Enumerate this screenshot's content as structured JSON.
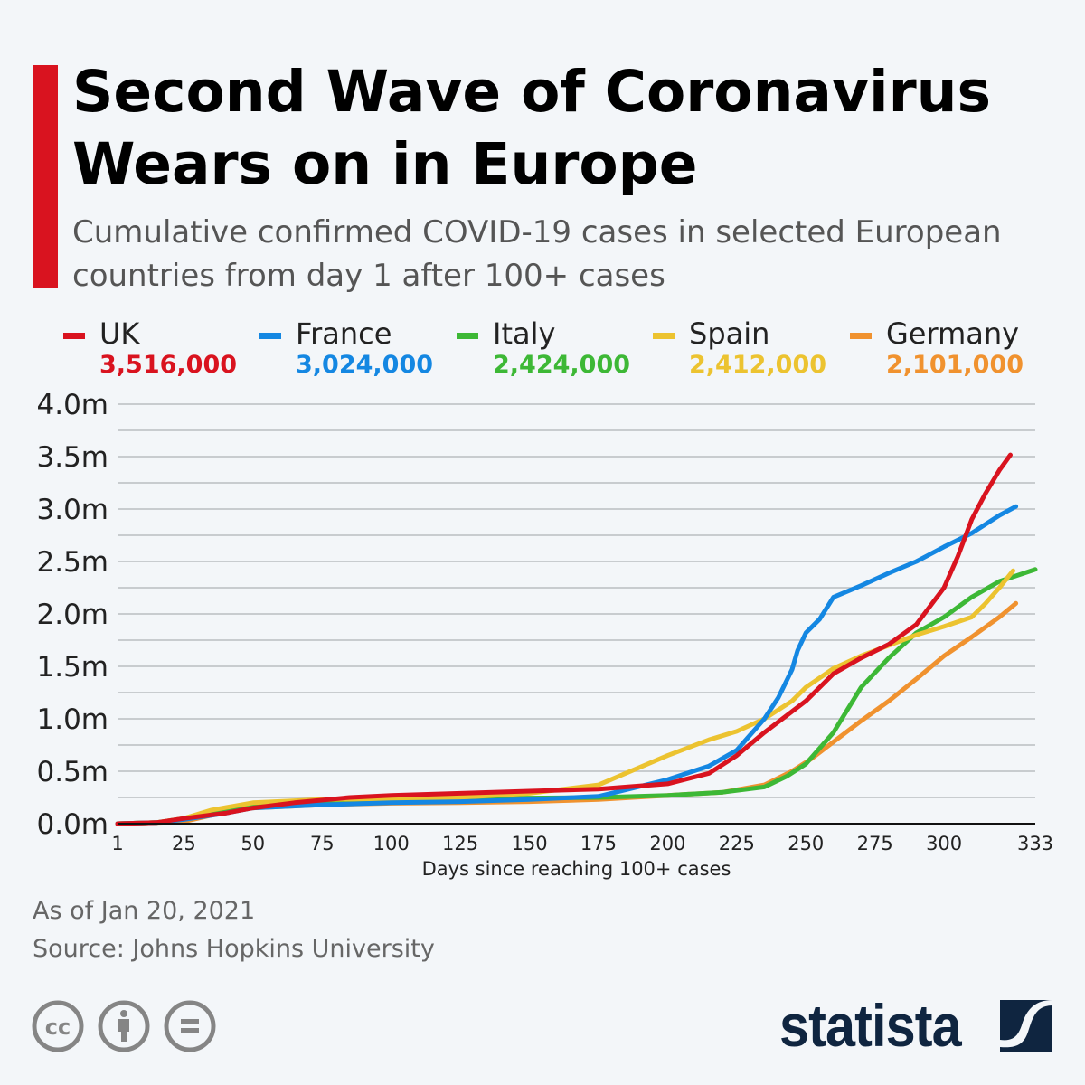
{
  "title": "Second Wave of Coronavirus Wears on in Europe",
  "subtitle": "Cumulative confirmed COVID-19 cases in selected European countries from day 1 after 100+ cases",
  "footer": {
    "date": "As of Jan 20, 2021",
    "source": "Source: Johns Hopkins University"
  },
  "brand": {
    "name": "statista",
    "license_icons": [
      "cc-icon",
      "attribution-icon",
      "no-derivatives-icon"
    ]
  },
  "legend": [
    {
      "name": "UK",
      "value": "3,516,000",
      "color": "#d9131f"
    },
    {
      "name": "France",
      "value": "3,024,000",
      "color": "#1487e2"
    },
    {
      "name": "Italy",
      "value": "2,424,000",
      "color": "#3db836"
    },
    {
      "name": "Spain",
      "value": "2,412,000",
      "color": "#ecc330"
    },
    {
      "name": "Germany",
      "value": "2,101,000",
      "color": "#f0922f"
    }
  ],
  "chart_data": {
    "type": "line",
    "xlabel": "Days since reaching 100+ cases",
    "ylabel": "",
    "xlim": [
      1,
      333
    ],
    "ylim": [
      0,
      4.0
    ],
    "x_ticks": [
      1,
      25,
      50,
      75,
      100,
      125,
      150,
      175,
      200,
      225,
      250,
      275,
      300,
      333
    ],
    "y_ticks": [
      {
        "v": 0,
        "label": "0.0m"
      },
      {
        "v": 0.5,
        "label": "0.5m"
      },
      {
        "v": 1.0,
        "label": "1.0m"
      },
      {
        "v": 1.5,
        "label": "1.5m"
      },
      {
        "v": 2.0,
        "label": "2.0m"
      },
      {
        "v": 2.5,
        "label": "2.5m"
      },
      {
        "v": 3.0,
        "label": "3.0m"
      },
      {
        "v": 3.5,
        "label": "3.5m"
      },
      {
        "v": 4.0,
        "label": "4.0m"
      }
    ],
    "grid": true,
    "units": "million cases",
    "series": [
      {
        "name": "UK",
        "color": "#d9131f",
        "x": [
          1,
          15,
          25,
          40,
          50,
          65,
          85,
          100,
          125,
          150,
          175,
          200,
          215,
          225,
          235,
          250,
          260,
          270,
          280,
          290,
          300,
          305,
          310,
          315,
          320,
          324
        ],
        "y": [
          0,
          0.01,
          0.05,
          0.1,
          0.15,
          0.2,
          0.25,
          0.27,
          0.29,
          0.31,
          0.33,
          0.38,
          0.48,
          0.65,
          0.87,
          1.17,
          1.43,
          1.58,
          1.71,
          1.9,
          2.25,
          2.55,
          2.9,
          3.15,
          3.37,
          3.516
        ]
      },
      {
        "name": "France",
        "color": "#1487e2",
        "x": [
          1,
          15,
          25,
          40,
          50,
          75,
          100,
          125,
          150,
          175,
          200,
          215,
          225,
          235,
          240,
          245,
          247,
          250,
          255,
          260,
          270,
          280,
          290,
          300,
          310,
          320,
          326
        ],
        "y": [
          0,
          0.01,
          0.04,
          0.1,
          0.15,
          0.18,
          0.2,
          0.21,
          0.23,
          0.26,
          0.42,
          0.55,
          0.7,
          1.0,
          1.2,
          1.47,
          1.65,
          1.82,
          1.95,
          2.16,
          2.27,
          2.39,
          2.5,
          2.64,
          2.77,
          2.94,
          3.024
        ]
      },
      {
        "name": "Italy",
        "color": "#3db836",
        "x": [
          1,
          15,
          25,
          35,
          50,
          75,
          100,
          125,
          150,
          175,
          200,
          220,
          235,
          243,
          250,
          260,
          270,
          280,
          290,
          300,
          310,
          320,
          333
        ],
        "y": [
          0,
          0.01,
          0.05,
          0.12,
          0.18,
          0.21,
          0.23,
          0.24,
          0.245,
          0.25,
          0.27,
          0.3,
          0.35,
          0.45,
          0.57,
          0.87,
          1.3,
          1.58,
          1.82,
          1.97,
          2.16,
          2.31,
          2.424
        ]
      },
      {
        "name": "Spain",
        "color": "#ecc330",
        "x": [
          1,
          15,
          25,
          35,
          50,
          75,
          100,
          125,
          150,
          175,
          200,
          215,
          225,
          235,
          245,
          250,
          260,
          270,
          280,
          290,
          300,
          310,
          315,
          320,
          325
        ],
        "y": [
          0,
          0.01,
          0.05,
          0.13,
          0.2,
          0.23,
          0.24,
          0.25,
          0.29,
          0.37,
          0.65,
          0.8,
          0.88,
          1.0,
          1.17,
          1.3,
          1.48,
          1.6,
          1.7,
          1.8,
          1.88,
          1.97,
          2.1,
          2.25,
          2.412
        ]
      },
      {
        "name": "Germany",
        "color": "#f0922f",
        "x": [
          1,
          15,
          25,
          35,
          50,
          75,
          100,
          125,
          150,
          175,
          200,
          220,
          235,
          245,
          252,
          260,
          270,
          280,
          290,
          300,
          310,
          320,
          326
        ],
        "y": [
          0,
          0.01,
          0.02,
          0.08,
          0.15,
          0.18,
          0.195,
          0.2,
          0.21,
          0.23,
          0.27,
          0.3,
          0.37,
          0.5,
          0.62,
          0.78,
          0.98,
          1.17,
          1.38,
          1.6,
          1.78,
          1.97,
          2.101
        ]
      }
    ]
  }
}
